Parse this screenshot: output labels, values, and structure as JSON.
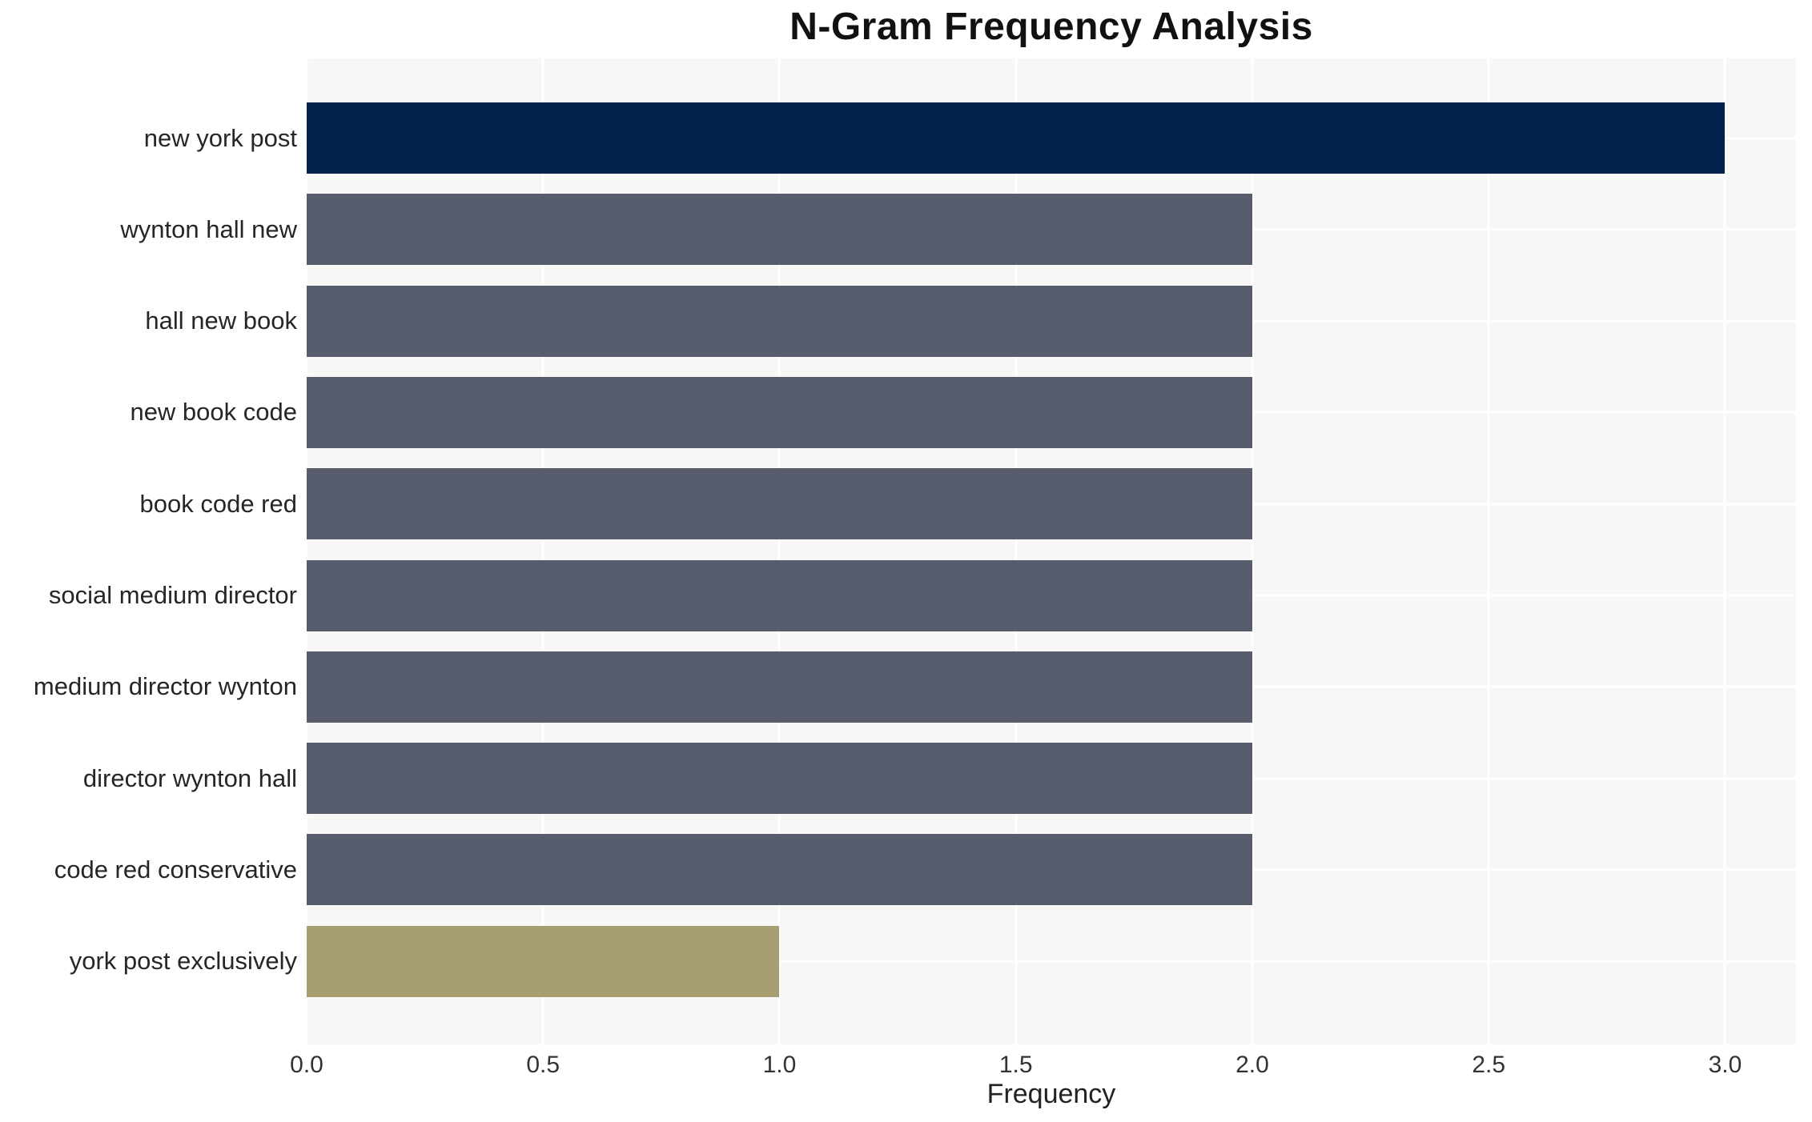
{
  "chart_data": {
    "type": "bar",
    "orientation": "horizontal",
    "title": "N-Gram Frequency Analysis",
    "categories": [
      "new york post",
      "wynton hall new",
      "hall new book",
      "new book code",
      "book code red",
      "social medium director",
      "medium director wynton",
      "director wynton hall",
      "code red conservative",
      "york post exclusively"
    ],
    "values": [
      3,
      2,
      2,
      2,
      2,
      2,
      2,
      2,
      2,
      1
    ],
    "bar_colors": [
      "#02234d",
      "#575d6c",
      "#575d6c",
      "#575d6c",
      "#575d6c",
      "#575d6c",
      "#575d6c",
      "#575d6c",
      "#575d6c",
      "#a79e71"
    ],
    "xlabel": "Frequency",
    "ylabel": "",
    "xlim": [
      0,
      3.15
    ],
    "xticks": [
      0.0,
      0.5,
      1.0,
      1.5,
      2.0,
      2.5,
      3.0
    ],
    "xtick_labels": [
      "0.0",
      "0.5",
      "1.0",
      "1.5",
      "2.0",
      "2.5",
      "3.0"
    ],
    "grid": true,
    "legend": false,
    "colors": {
      "figure_bg": "#ffffff",
      "plot_bg": "#f7f7f8",
      "grid": "#ffffff",
      "title_text": "#111111",
      "tick_text": "#333333",
      "label_text": "#262626"
    }
  }
}
